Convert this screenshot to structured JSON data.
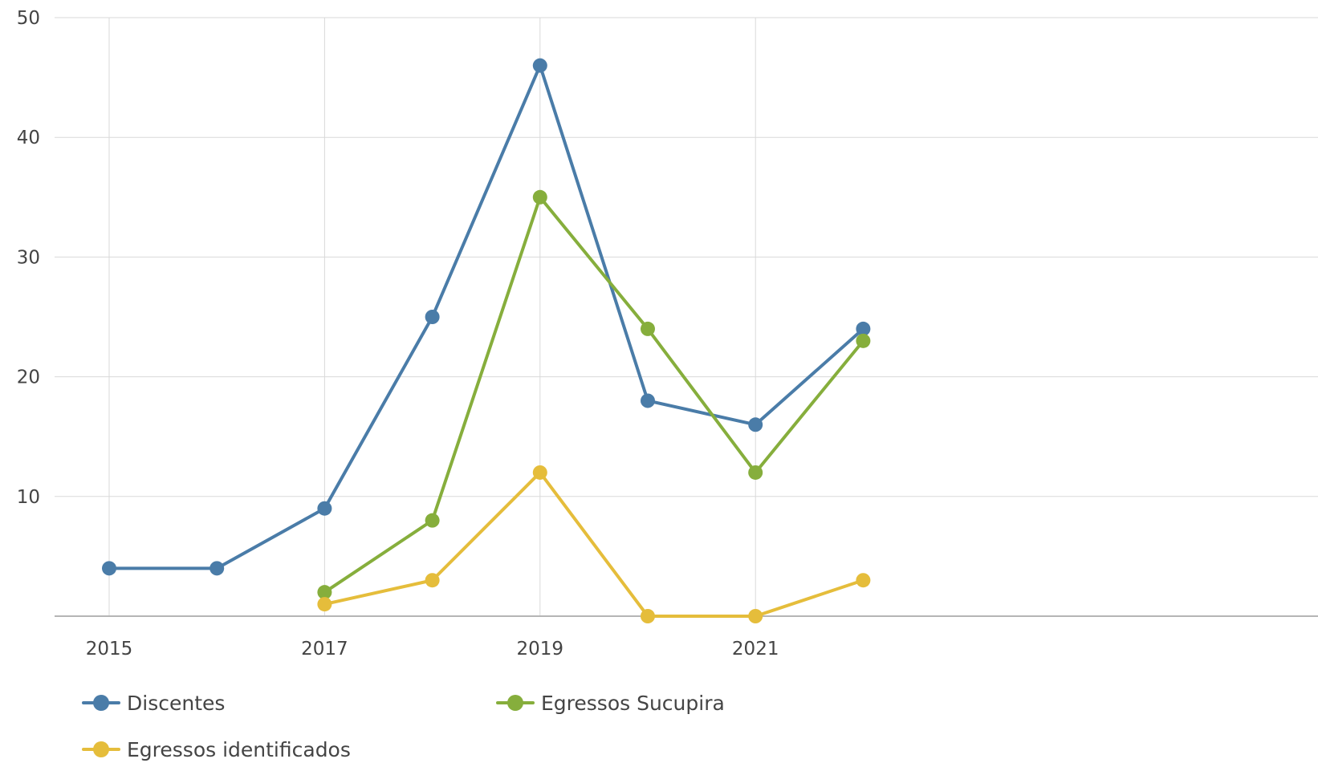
{
  "chart_data": {
    "type": "line",
    "title": "",
    "xlabel": "",
    "ylabel": "",
    "x": [
      2015,
      2016,
      2017,
      2018,
      2019,
      2020,
      2021,
      2022
    ],
    "xlim": [
      2015,
      2026
    ],
    "ylim": [
      0,
      50
    ],
    "x_ticks": [
      2015,
      2017,
      2019,
      2021
    ],
    "y_ticks": [
      10,
      20,
      30,
      40,
      50
    ],
    "grid": true,
    "legend_position": "bottom-left",
    "series": [
      {
        "name": "Discentes",
        "color": "#4a7ca8",
        "points": [
          [
            2015,
            4
          ],
          [
            2016,
            4
          ],
          [
            2017,
            9
          ],
          [
            2018,
            25
          ],
          [
            2019,
            46
          ],
          [
            2020,
            18
          ],
          [
            2021,
            16
          ],
          [
            2022,
            24
          ]
        ]
      },
      {
        "name": "Egressos Sucupira",
        "color": "#86ae3c",
        "points": [
          [
            2017,
            2
          ],
          [
            2018,
            8
          ],
          [
            2019,
            35
          ],
          [
            2020,
            24
          ],
          [
            2021,
            12
          ],
          [
            2022,
            23
          ]
        ]
      },
      {
        "name": "Egressos identificados",
        "color": "#e5bd3b",
        "points": [
          [
            2017,
            1
          ],
          [
            2018,
            3
          ],
          [
            2019,
            12
          ],
          [
            2020,
            0
          ],
          [
            2021,
            0
          ],
          [
            2022,
            3
          ]
        ]
      }
    ]
  }
}
